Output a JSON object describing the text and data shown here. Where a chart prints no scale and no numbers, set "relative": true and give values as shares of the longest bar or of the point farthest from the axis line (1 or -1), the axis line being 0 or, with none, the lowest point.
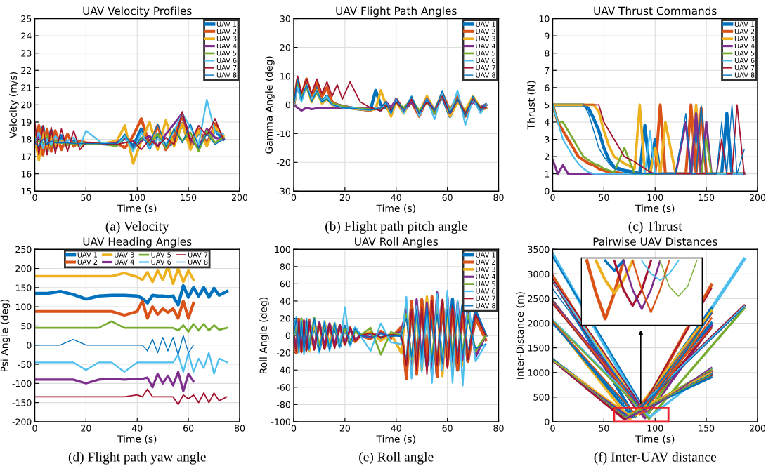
{
  "chart_data": [
    {
      "type": "line",
      "title": "UAV Velocity Profiles",
      "xlabel": "Time (s)",
      "ylabel": "Velocity (m/s)",
      "xlim": [
        0,
        200
      ],
      "xticks": [
        0,
        50,
        100,
        150,
        200
      ],
      "ylim": [
        15,
        25
      ],
      "yticks": [
        15,
        16,
        17,
        18,
        19,
        20,
        21,
        22,
        23,
        24,
        25
      ],
      "grid": true,
      "legend": "top right",
      "annotations": [
        "(a) Velocity"
      ],
      "x": [
        0,
        4,
        8,
        12,
        16,
        20,
        26,
        32,
        38,
        44,
        50,
        65,
        80,
        88,
        96,
        104,
        112,
        120,
        128,
        136,
        144,
        152,
        160,
        168,
        176,
        184
      ],
      "series": [
        {
          "name": "UAV 1",
          "color": "#0072bd",
          "values": [
            18,
            17.2,
            18.7,
            17.3,
            18.5,
            17.5,
            18.2,
            17.7,
            17.9,
            17.8,
            17.75,
            17.75,
            17.7,
            18.1,
            17.6,
            18.6,
            17.5,
            18.3,
            17.6,
            17.8,
            18.9,
            17.6,
            18.4,
            17.8,
            18.5,
            18
          ]
        },
        {
          "name": "UAV 2",
          "color": "#d95319",
          "values": [
            17.9,
            18.8,
            17.1,
            18.6,
            17.3,
            18.5,
            17.4,
            18.3,
            17.6,
            17.9,
            17.8,
            17.75,
            17.8,
            17.5,
            18.2,
            19.2,
            17.7,
            18.8,
            17.4,
            18.2,
            19.4,
            17.5,
            18.6,
            17.7,
            18.9,
            18.1
          ]
        },
        {
          "name": "UAV 3",
          "color": "#edb120",
          "values": [
            18.1,
            16.8,
            18.6,
            17.3,
            18.2,
            17.6,
            17.9,
            17.7,
            17.8,
            17.6,
            17.8,
            17.75,
            17.9,
            18.8,
            16.6,
            17.9,
            19,
            17.4,
            19.1,
            17.6,
            18.9,
            17.4,
            18.5,
            17.6,
            18.7,
            18.2
          ]
        },
        {
          "name": "UAV 4",
          "color": "#7e2f8e",
          "values": [
            17.8,
            18.2,
            17.6,
            18.1,
            17.7,
            17.9,
            17.8,
            17.8,
            17.75,
            17.75,
            17.75,
            17.75,
            17.8,
            18.1,
            17.5,
            17.9,
            18.2,
            17.6,
            18.3,
            18.9,
            19.5,
            18,
            17.5,
            18.6,
            18.1,
            18
          ]
        },
        {
          "name": "UAV 5",
          "color": "#77ac30",
          "values": [
            18,
            17.9,
            17.7,
            18.2,
            17.6,
            17.9,
            17.8,
            17.7,
            17.75,
            17.75,
            17.75,
            17.75,
            17.6,
            18.2,
            17.4,
            18.1,
            17.8,
            18.3,
            17.5,
            18.6,
            17.9,
            18.4,
            17.3,
            18.5,
            17.8,
            18.1
          ]
        },
        {
          "name": "UAV 6",
          "color": "#4dbeee",
          "values": [
            17.9,
            18.4,
            17.5,
            18,
            17.7,
            18.2,
            17.8,
            17.9,
            18.1,
            17.6,
            18.5,
            17.8,
            17.7,
            18.2,
            17.3,
            18.4,
            17.5,
            18,
            17.7,
            18.5,
            19.5,
            18.7,
            17.7,
            20.3,
            18.4,
            18.3
          ]
        },
        {
          "name": "UAV 7",
          "color": "#a2142f",
          "values": [
            19,
            17.1,
            18.8,
            17.1,
            18.7,
            17.2,
            18.6,
            17.3,
            18.5,
            17.4,
            17.8,
            17.75,
            17.7,
            17.8,
            17.9,
            17.4,
            18,
            17.6,
            18.1,
            17.7,
            19.6,
            17.9,
            18.8,
            18.2,
            19.2,
            18
          ]
        },
        {
          "name": "UAV 8",
          "color": "#0072bd",
          "values": [
            17.8,
            17.6,
            18,
            17.7,
            17.9,
            17.8,
            17.8,
            17.8,
            17.75,
            17.75,
            17.75,
            17.75,
            17.75,
            18.3,
            17.5,
            18.1,
            17.7,
            18.9,
            17.6,
            18.6,
            17.8,
            18.9,
            17.5,
            18.3,
            17.7,
            18
          ]
        }
      ]
    },
    {
      "type": "line",
      "title": "UAV Flight Path Angles",
      "xlabel": "Time (s)",
      "ylabel": "Gamma Angle (deg)",
      "xlim": [
        0,
        80
      ],
      "xticks": [
        0,
        20,
        40,
        60,
        80
      ],
      "ylim": [
        -30,
        30
      ],
      "yticks": [
        -30,
        -20,
        -10,
        0,
        10,
        20,
        30
      ],
      "grid": true,
      "legend": "top right",
      "annotations": [
        "(b) Flight path pitch angle"
      ],
      "x": [
        0,
        1.5,
        3,
        5,
        7,
        9,
        11,
        13,
        15,
        17,
        19,
        22,
        26,
        30,
        32,
        34,
        36,
        38,
        40,
        43,
        46,
        49,
        52,
        55,
        58,
        61,
        64,
        67,
        70,
        73,
        75
      ],
      "series": [
        {
          "name": "UAV 1",
          "color": "#0072bd",
          "values": [
            0,
            8,
            2,
            8,
            2,
            6,
            1,
            3,
            0.5,
            0,
            -0.5,
            -1,
            -1.5,
            -1.8,
            5,
            0,
            -1,
            -2,
            1,
            -2,
            1,
            -3,
            2,
            -2,
            3,
            -4,
            2,
            -3,
            2,
            -1,
            0
          ]
        },
        {
          "name": "UAV 2",
          "color": "#d95319",
          "values": [
            0,
            9,
            3,
            9,
            3,
            8,
            3,
            6,
            1,
            0,
            -0.5,
            -1,
            -1.5,
            -2,
            -1,
            -2,
            1,
            -3,
            2,
            -2,
            1,
            -4,
            2,
            -3,
            4,
            -2,
            3,
            -4,
            2,
            -2,
            -1
          ]
        },
        {
          "name": "UAV 3",
          "color": "#edb120",
          "values": [
            0,
            7,
            2,
            7,
            1,
            5,
            0.5,
            2,
            0,
            -0.5,
            -1,
            -1.2,
            -1.5,
            -1.8,
            -1.5,
            5,
            0,
            -4,
            1,
            -3,
            2,
            -3,
            3,
            -2,
            4,
            -4,
            1,
            -2,
            3,
            -1,
            0
          ]
        },
        {
          "name": "UAV 4",
          "color": "#7e2f8e",
          "values": [
            0,
            -1,
            -2,
            -1,
            -1.5,
            -1.2,
            -1.2,
            -1,
            -1,
            -1,
            -1,
            -1,
            -1,
            -1.2,
            -1,
            -2,
            1,
            -1,
            2,
            -2,
            1,
            -3,
            2,
            -2,
            3,
            -3,
            2,
            -3,
            1,
            -1,
            0
          ]
        },
        {
          "name": "UAV 5",
          "color": "#77ac30",
          "values": [
            0,
            8,
            3,
            6,
            2,
            4,
            1,
            2,
            0.5,
            0,
            -0.5,
            -1,
            -1.3,
            -1.5,
            -1.5,
            -1.5,
            0,
            -2,
            1,
            -1,
            2,
            -2,
            1,
            -3,
            3,
            -2,
            2,
            -3,
            2,
            -1,
            -1
          ]
        },
        {
          "name": "UAV 6",
          "color": "#4dbeee",
          "values": [
            0,
            6,
            1,
            7,
            2,
            5,
            1,
            3,
            0,
            -0.5,
            -1,
            -1,
            -1.5,
            -1.8,
            -1,
            -2,
            1,
            -3,
            2,
            -3,
            3,
            -4,
            2,
            -5,
            4,
            -3,
            5,
            -7,
            2,
            -3,
            0
          ]
        },
        {
          "name": "UAV 7",
          "color": "#a2142f",
          "values": [
            0,
            10,
            4,
            9,
            4,
            9,
            4,
            8,
            3,
            7,
            2,
            8,
            1,
            -1,
            -1.5,
            -2,
            0,
            -2,
            1,
            -2,
            2,
            -3,
            1,
            -2,
            3,
            -3,
            2,
            -3,
            2,
            -1,
            -1
          ]
        },
        {
          "name": "UAV 8",
          "color": "#0072bd",
          "values": [
            0,
            9,
            2,
            7,
            1,
            5,
            1,
            2,
            0,
            -0.5,
            -1,
            -1.2,
            -1.5,
            -1.8,
            -1.5,
            -1,
            1,
            -3,
            2,
            -2,
            3,
            -3,
            2,
            -2,
            5,
            -3,
            2,
            -4,
            3,
            -2,
            0
          ]
        }
      ]
    },
    {
      "type": "line",
      "title": "UAV Thrust Commands",
      "xlabel": "Time (s)",
      "ylabel": "Thrust (N)",
      "xlim": [
        0,
        200
      ],
      "xticks": [
        0,
        50,
        100,
        150,
        200
      ],
      "ylim": [
        0,
        10
      ],
      "yticks": [
        0,
        1,
        2,
        3,
        4,
        5,
        6,
        7,
        8,
        9,
        10
      ],
      "grid": true,
      "legend": "top right",
      "annotations": [
        "(c) Thrust"
      ],
      "x": [
        0,
        5,
        10,
        15,
        20,
        25,
        30,
        35,
        40,
        45,
        50,
        55,
        60,
        70,
        80,
        85,
        90,
        95,
        100,
        105,
        110,
        120,
        130,
        135,
        140,
        145,
        150,
        155,
        160,
        165,
        170,
        175,
        180,
        187
      ],
      "series": [
        {
          "name": "UAV 1",
          "color": "#0072bd",
          "values": [
            5,
            5,
            5,
            5,
            5,
            5,
            5,
            4.8,
            4.2,
            3.5,
            2.5,
            1.8,
            1.4,
            1.2,
            1.1,
            1,
            3.8,
            1,
            3,
            1,
            1,
            1,
            1,
            1,
            4,
            1,
            1,
            1,
            1,
            1,
            4.5,
            1,
            1,
            1
          ]
        },
        {
          "name": "UAV 2",
          "color": "#d95319",
          "values": [
            5,
            4,
            3.5,
            3,
            2.5,
            2,
            1.8,
            1.6,
            1.5,
            1.3,
            1.2,
            1.1,
            1.1,
            1,
            1,
            1,
            1,
            1,
            1,
            5,
            1,
            1,
            1,
            5,
            1,
            4.8,
            1,
            1,
            1,
            1,
            1,
            1,
            1,
            1
          ]
        },
        {
          "name": "UAV 3",
          "color": "#edb120",
          "values": [
            5,
            5,
            5,
            5,
            5,
            5,
            5,
            5,
            5,
            4.6,
            3.5,
            2.6,
            2,
            1.6,
            1.3,
            5,
            1,
            1,
            2.5,
            1,
            4,
            1,
            1,
            1,
            5,
            1,
            1,
            1,
            1,
            1,
            1,
            1,
            1,
            1
          ]
        },
        {
          "name": "UAV 4",
          "color": "#7e2f8e",
          "values": [
            1.8,
            1,
            1.5,
            1,
            1,
            1,
            1,
            1,
            1,
            1,
            1,
            1,
            1,
            1,
            1,
            1,
            1,
            1,
            1,
            1,
            1,
            1,
            4,
            1,
            4.5,
            1,
            4,
            1,
            1,
            1,
            1,
            1,
            1,
            1
          ]
        },
        {
          "name": "UAV 5",
          "color": "#77ac30",
          "values": [
            5,
            4,
            4,
            3.5,
            3,
            2.5,
            2,
            1.8,
            1.6,
            1.5,
            1.3,
            1.2,
            1.1,
            2.5,
            1,
            1,
            1,
            1,
            1,
            1,
            1,
            1,
            1,
            1,
            1,
            1,
            3,
            1,
            1,
            1,
            null,
            null,
            null,
            null
          ]
        },
        {
          "name": "UAV 6",
          "color": "#4dbeee",
          "values": [
            5,
            4,
            3,
            2.5,
            2,
            1.6,
            1.3,
            1.1,
            1,
            1,
            1,
            1,
            1,
            1,
            1,
            1,
            1,
            3.5,
            1,
            1,
            1,
            1,
            1,
            1,
            1,
            1,
            1,
            1,
            1,
            1,
            1,
            1,
            1,
            1
          ]
        },
        {
          "name": "UAV 7",
          "color": "#a2142f",
          "values": [
            null,
            null,
            null,
            null,
            null,
            null,
            5,
            5,
            5,
            5,
            4,
            3.5,
            3,
            2,
            1.7,
            1.5,
            1.3,
            1.1,
            1,
            1,
            1,
            1,
            1,
            1,
            1,
            1,
            1,
            1,
            1,
            3,
            1,
            1,
            5,
            1
          ]
        },
        {
          "name": "UAV 8",
          "color": "#0072bd",
          "values": [
            5,
            5,
            5,
            5,
            5,
            5,
            5,
            4.5,
            3.5,
            2.5,
            2,
            1.6,
            1.3,
            1.1,
            1,
            1,
            1,
            1,
            1,
            1,
            1,
            1,
            4.5,
            1,
            1,
            5,
            1,
            1,
            1,
            4,
            1,
            5,
            1,
            2.4
          ]
        }
      ]
    },
    {
      "type": "line",
      "title": "UAV Heading Angles",
      "xlabel": "Time (s)",
      "ylabel": "Psi Angle (deg)",
      "xlim": [
        0,
        80
      ],
      "xticks": [
        0,
        20,
        40,
        60,
        80
      ],
      "ylim": [
        -200,
        250
      ],
      "yticks": [
        -200,
        -150,
        -100,
        -50,
        0,
        50,
        100,
        150,
        200,
        250
      ],
      "grid": true,
      "legend": "top",
      "annotations": [
        "(d) Flight path yaw angle"
      ],
      "x": [
        0,
        5,
        10,
        15,
        20,
        25,
        30,
        35,
        40,
        42,
        44,
        46,
        48,
        50,
        52,
        54,
        56,
        58,
        60,
        62,
        64,
        66,
        68,
        70,
        72,
        75
      ],
      "series": [
        {
          "name": "UAV 1",
          "color": "#0072bd",
          "values": [
            135,
            135,
            140,
            132,
            120,
            128,
            130,
            130,
            128,
            122,
            110,
            130,
            128,
            128,
            126,
            128,
            105,
            155,
            125,
            150,
            128,
            150,
            125,
            148,
            130,
            140
          ]
        },
        {
          "name": "UAV 2",
          "color": "#d95319",
          "values": [
            88,
            88,
            88,
            88,
            88,
            88,
            88,
            78,
            88,
            115,
            70,
            100,
            80,
            95,
            85,
            95,
            70,
            115,
            70,
            110,
            null,
            null,
            null,
            null,
            null,
            null
          ]
        },
        {
          "name": "UAV 3",
          "color": "#edb120",
          "values": [
            180,
            180,
            180,
            180,
            180,
            180,
            180,
            188,
            178,
            170,
            190,
            165,
            195,
            170,
            205,
            160,
            200,
            165,
            195,
            170,
            null,
            null,
            null,
            null,
            null,
            null
          ]
        },
        {
          "name": "UAV 4",
          "color": "#7e2f8e",
          "values": [
            -90,
            -90,
            -90,
            -90,
            -100,
            -90,
            -88,
            -90,
            -88,
            -88,
            -85,
            -110,
            -75,
            -100,
            -80,
            -105,
            -70,
            -120,
            -75,
            -95,
            null,
            null,
            null,
            null,
            null,
            null
          ]
        },
        {
          "name": "UAV 5",
          "color": "#77ac30",
          "values": [
            45,
            45,
            45,
            45,
            45,
            45,
            62,
            45,
            45,
            45,
            45,
            45,
            45,
            45,
            45,
            45,
            38,
            52,
            35,
            55,
            38,
            55,
            38,
            52,
            40,
            45
          ]
        },
        {
          "name": "UAV 6",
          "color": "#4dbeee",
          "values": [
            -45,
            -45,
            -45,
            -45,
            -65,
            -45,
            -45,
            -70,
            -45,
            -45,
            -45,
            -45,
            -45,
            -45,
            -45,
            -45,
            -25,
            -70,
            -20,
            -70,
            -35,
            -60,
            -20,
            -75,
            -35,
            -45
          ]
        },
        {
          "name": "UAV 7",
          "color": "#a2142f",
          "values": [
            -135,
            -135,
            -135,
            -135,
            -135,
            -135,
            -135,
            -135,
            -130,
            -135,
            -115,
            -135,
            -135,
            -135,
            -135,
            -135,
            -155,
            -130,
            -140,
            -130,
            -150,
            -125,
            -150,
            -125,
            -145,
            -135
          ]
        },
        {
          "name": "UAV 8",
          "color": "#0072bd",
          "values": [
            0,
            0,
            0,
            15,
            0,
            0,
            0,
            0,
            0,
            0,
            -15,
            15,
            -20,
            20,
            -15,
            20,
            -25,
            25,
            -20,
            0,
            null,
            null,
            null,
            null,
            null,
            null
          ]
        }
      ]
    },
    {
      "type": "line",
      "title": "UAV Roll Angles",
      "xlabel": "Time (s)",
      "ylabel": "Roll Angle (deg)",
      "xlim": [
        0,
        80
      ],
      "xticks": [
        0,
        20,
        40,
        60,
        80
      ],
      "ylim": [
        -100,
        100
      ],
      "yticks": [
        -100,
        -80,
        -60,
        -40,
        -20,
        0,
        20,
        40,
        60,
        80,
        100
      ],
      "grid": true,
      "legend": "top right",
      "annotations": [
        "(e) Roll angle"
      ],
      "x": [
        0,
        1,
        2,
        3,
        4,
        5,
        6,
        8,
        10,
        12,
        14,
        16,
        18,
        20,
        22,
        24,
        26,
        30,
        34,
        38,
        42,
        44,
        46,
        48,
        50,
        52,
        54,
        56,
        58,
        60,
        62,
        64,
        66,
        68,
        71,
        75
      ],
      "series": [
        {
          "name": "UAV 1",
          "color": "#0072bd",
          "values": [
            0,
            18,
            -18,
            16,
            -17,
            15,
            -15,
            14,
            -16,
            13,
            -14,
            12,
            -12,
            10,
            -10,
            8,
            0,
            2,
            -3,
            1,
            0,
            -40,
            35,
            -30,
            40,
            -35,
            30,
            -45,
            38,
            -30,
            42,
            -40,
            35,
            -30,
            28,
            0
          ]
        },
        {
          "name": "UAV 2",
          "color": "#d95319",
          "values": [
            0,
            -20,
            19,
            -18,
            17,
            -16,
            18,
            -15,
            14,
            -15,
            13,
            -12,
            11,
            -10,
            9,
            -7,
            0,
            -4,
            5,
            -3,
            10,
            -50,
            40,
            -45,
            42,
            -30,
            45,
            -48,
            40,
            -35,
            30,
            -40,
            25,
            -30,
            20,
            -5
          ]
        },
        {
          "name": "UAV 3",
          "color": "#edb120",
          "values": [
            null,
            null,
            -17,
            19,
            -16,
            14,
            -18,
            15,
            -13,
            16,
            -12,
            14,
            -11,
            9,
            -8,
            6,
            0,
            4,
            -6,
            2,
            -20,
            38,
            -45,
            30,
            -40,
            45,
            -38,
            40,
            -47,
            35,
            -38,
            30,
            -35,
            25,
            -20,
            0
          ]
        },
        {
          "name": "UAV 4",
          "color": "#7e2f8e",
          "values": [
            0,
            -15,
            16,
            -14,
            17,
            -15,
            16,
            -13,
            15,
            -12,
            14,
            -11,
            12,
            -9,
            8,
            -5,
            0,
            -2,
            3,
            -1,
            5,
            30,
            -35,
            42,
            -30,
            38,
            -45,
            50,
            -40,
            45,
            -30,
            38,
            -28,
            35,
            -25,
            0
          ]
        },
        {
          "name": "UAV 5",
          "color": "#77ac30",
          "values": [
            0,
            12,
            -14,
            20,
            -13,
            15,
            -12,
            21,
            -14,
            13,
            -15,
            12,
            -10,
            9,
            -7,
            5,
            0,
            9,
            -22,
            4,
            0,
            25,
            -28,
            30,
            -35,
            25,
            -30,
            35,
            -28,
            32,
            -25,
            30,
            -20,
            25,
            -18,
            0
          ]
        },
        {
          "name": "UAV 6",
          "color": "#4dbeee",
          "values": [
            0,
            22,
            -20,
            18,
            -22,
            20,
            -17,
            19,
            -20,
            17,
            -18,
            15,
            -14,
            33,
            -12,
            10,
            0,
            -18,
            14,
            -8,
            -10,
            45,
            -50,
            35,
            -42,
            30,
            -55,
            48,
            -40,
            52,
            -55,
            40,
            -58,
            45,
            -30,
            -10
          ]
        },
        {
          "name": "UAV 7",
          "color": "#a2142f",
          "values": [
            0,
            -18,
            17,
            -20,
            16,
            -18,
            15,
            -17,
            14,
            -16,
            13,
            -15,
            12,
            -11,
            9,
            -6,
            0,
            3,
            -2,
            1,
            0,
            -35,
            30,
            -40,
            33,
            -45,
            40,
            -35,
            42,
            -38,
            35,
            -32,
            30,
            -28,
            25,
            0
          ]
        },
        {
          "name": "UAV 8",
          "color": "#0072bd",
          "values": [
            0,
            20,
            -18,
            17,
            -19,
            18,
            -16,
            20,
            -18,
            15,
            -17,
            14,
            -13,
            12,
            -10,
            8,
            0,
            -3,
            2,
            -1,
            0,
            20,
            -25,
            30,
            -28,
            35,
            -30,
            25,
            -32,
            30,
            -27,
            25,
            -22,
            18,
            -15,
            -10
          ]
        }
      ]
    },
    {
      "type": "line",
      "title": "Pairwise UAV Distances",
      "xlabel": "Time (s)",
      "ylabel": "Inter-Distance (m)",
      "xlim": [
        0,
        200
      ],
      "xticks": [
        0,
        50,
        100,
        150,
        200
      ],
      "ylim": [
        0,
        3500
      ],
      "yticks": [
        0,
        500,
        1000,
        1500,
        2000,
        2500,
        3000,
        3500
      ],
      "grid": true,
      "annotations": [
        "(f) Inter-UAV distance"
      ],
      "series": [
        {
          "color": "#4dbeee",
          "x": [
            0,
            88,
            187
          ],
          "values": [
            3400,
            200,
            3300
          ]
        },
        {
          "color": "#d95319",
          "x": [
            0,
            85,
            155
          ],
          "values": [
            2950,
            150,
            2780
          ]
        },
        {
          "color": "#0072bd",
          "x": [
            0,
            80,
            155
          ],
          "values": [
            2900,
            100,
            2300
          ]
        },
        {
          "color": "#a2142f",
          "x": [
            0,
            82,
            187
          ],
          "values": [
            2880,
            250,
            2350
          ]
        },
        {
          "color": "#7e2f8e",
          "x": [
            0,
            90,
            155
          ],
          "values": [
            2450,
            80,
            1950
          ]
        },
        {
          "color": "#77ac30",
          "x": [
            0,
            92,
            155
          ],
          "values": [
            2420,
            120,
            2250
          ]
        },
        {
          "color": "#edb120",
          "x": [
            0,
            75,
            155
          ],
          "values": [
            2050,
            60,
            1050
          ]
        },
        {
          "color": "#0072bd",
          "x": [
            0,
            78,
            155
          ],
          "values": [
            2030,
            100,
            2000
          ]
        },
        {
          "color": "#a2142f",
          "x": [
            0,
            70,
            155
          ],
          "values": [
            1250,
            50,
            950
          ]
        },
        {
          "color": "#7e2f8e",
          "x": [
            0,
            72,
            155
          ],
          "values": [
            1260,
            80,
            1000
          ]
        },
        {
          "color": "#d95319",
          "x": [
            0,
            86,
            155
          ],
          "values": [
            2920,
            180,
            2200
          ]
        },
        {
          "color": "#77ac30",
          "x": [
            0,
            94,
            187
          ],
          "values": [
            2440,
            60,
            2300
          ]
        },
        {
          "color": "#4dbeee",
          "x": [
            0,
            95,
            155
          ],
          "values": [
            2060,
            100,
            1080
          ]
        },
        {
          "color": "#0072bd",
          "x": [
            0,
            73,
            155
          ],
          "values": [
            1270,
            120,
            900
          ]
        },
        {
          "color": "#edb120",
          "x": [
            0,
            84,
            155
          ],
          "values": [
            2900,
            300,
            2250
          ]
        },
        {
          "color": "#a2142f",
          "x": [
            0,
            88,
            155
          ],
          "values": [
            2400,
            220,
            1900
          ]
        },
        {
          "color": "#0072bd",
          "x": [
            0,
            80,
            155
          ],
          "values": [
            2000,
            150,
            980
          ]
        },
        {
          "color": "#7e2f8e",
          "x": [
            0,
            76,
            155
          ],
          "values": [
            1240,
            100,
            1020
          ]
        },
        {
          "color": "#4dbeee",
          "x": [
            0,
            83,
            187
          ],
          "values": [
            2880,
            260,
            2340
          ]
        },
        {
          "color": "#d95319",
          "x": [
            0,
            89,
            155
          ],
          "values": [
            2430,
            180,
            2100
          ]
        },
        {
          "color": "#77ac30",
          "x": [
            0,
            86,
            155
          ],
          "values": [
            2050,
            250,
            1060
          ]
        },
        {
          "color": "#edb120",
          "x": [
            0,
            74,
            155
          ],
          "values": [
            1250,
            150,
            1000
          ]
        },
        {
          "color": "#0072bd",
          "x": [
            0,
            90,
            155
          ],
          "values": [
            3350,
            250,
            2200
          ]
        },
        {
          "color": "#a2142f",
          "x": [
            0,
            87,
            155
          ],
          "values": [
            2900,
            300,
            2700
          ]
        },
        {
          "color": "#7e2f8e",
          "x": [
            0,
            91,
            155
          ],
          "values": [
            2450,
            200,
            1100
          ]
        },
        {
          "color": "#d95319",
          "x": [
            0,
            79,
            155
          ],
          "values": [
            2040,
            200,
            1900
          ]
        },
        {
          "color": "#77ac30",
          "x": [
            0,
            71,
            155
          ],
          "values": [
            1260,
            90,
            950
          ]
        },
        {
          "color": "#0072bd",
          "x": [
            0,
            85,
            187
          ],
          "values": [
            2700,
            280,
            2320
          ]
        }
      ]
    },
    {
      "type": "line",
      "relative": true,
      "tick_labels": false,
      "grid": true,
      "categories": [
        null,
        null,
        null,
        null,
        null,
        null,
        null,
        null,
        null,
        null,
        null,
        null,
        null
      ],
      "series": [
        {
          "color": "#d95319",
          "values": [
            1,
            0.5,
            0.1,
            0.5,
            1,
            null,
            null,
            null,
            null,
            null,
            null,
            null,
            null
          ]
        },
        {
          "color": "#edb120",
          "values": [
            null,
            1,
            0.7,
            0.5,
            0.7,
            1,
            null,
            null,
            null,
            null,
            null,
            null,
            null
          ]
        },
        {
          "color": "#0072bd",
          "values": [
            null,
            null,
            1,
            0.85,
            1,
            null,
            null,
            null,
            null,
            null,
            null,
            null,
            null
          ]
        },
        {
          "color": "#a2142f",
          "values": [
            null,
            null,
            null,
            1,
            0.55,
            0.3,
            0.55,
            1,
            null,
            null,
            null,
            null,
            null
          ]
        },
        {
          "color": "#7e2f8e",
          "values": [
            null,
            null,
            null,
            null,
            1,
            0.55,
            0.25,
            0.55,
            1,
            null,
            null,
            null,
            null
          ]
        },
        {
          "color": "#d95319",
          "values": [
            null,
            null,
            null,
            null,
            null,
            1,
            0.55,
            0.2,
            0.55,
            1,
            null,
            null,
            null
          ]
        },
        {
          "color": "#4dbeee",
          "values": [
            null,
            null,
            null,
            null,
            null,
            null,
            1,
            0.8,
            0.7,
            0.8,
            1,
            null,
            null
          ]
        },
        {
          "color": "#77ac30",
          "values": [
            null,
            null,
            null,
            null,
            null,
            null,
            null,
            null,
            1,
            0.6,
            0.45,
            0.6,
            1
          ]
        }
      ]
    }
  ]
}
